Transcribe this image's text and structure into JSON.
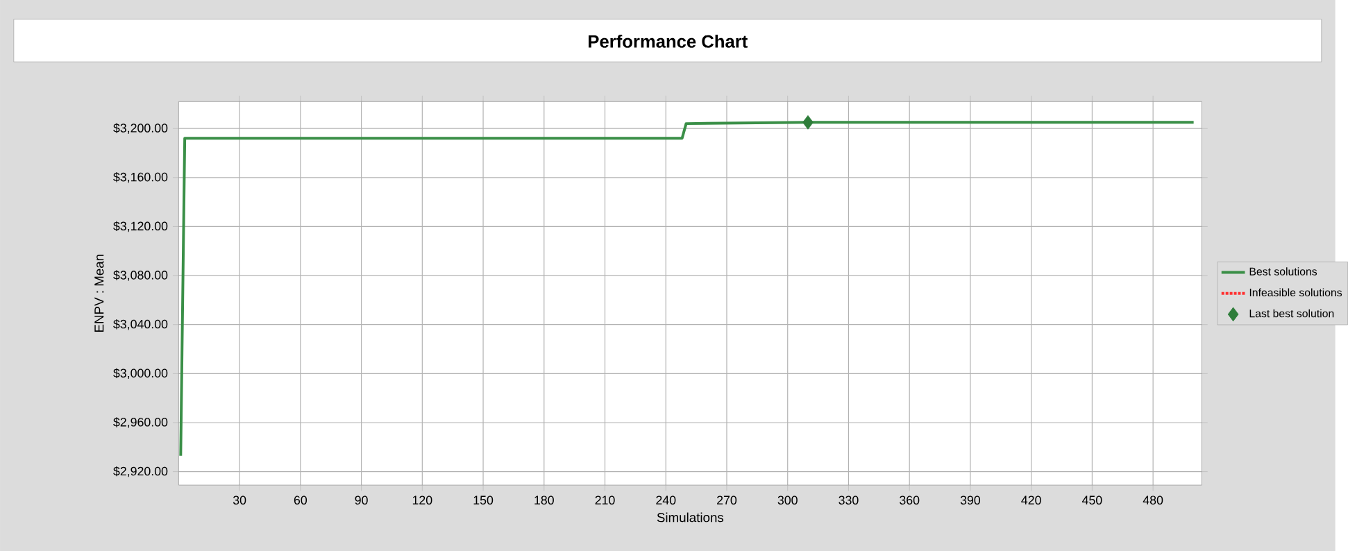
{
  "chart_data": {
    "type": "line",
    "title": "Performance Chart",
    "xlabel": "Simulations",
    "ylabel": "ENPV : Mean",
    "xlim": [
      0,
      504
    ],
    "ylim": [
      2909,
      3222
    ],
    "xticks": [
      30,
      60,
      90,
      120,
      150,
      180,
      210,
      240,
      270,
      300,
      330,
      360,
      390,
      420,
      450,
      480
    ],
    "yticks": [
      {
        "value": 2920,
        "label": "$2,920.00"
      },
      {
        "value": 2960,
        "label": "$2,960.00"
      },
      {
        "value": 3000,
        "label": "$3,000.00"
      },
      {
        "value": 3040,
        "label": "$3,040.00"
      },
      {
        "value": 3080,
        "label": "$3,080.00"
      },
      {
        "value": 3120,
        "label": "$3,120.00"
      },
      {
        "value": 3160,
        "label": "$3,160.00"
      },
      {
        "value": 3200,
        "label": "$3,200.00"
      }
    ],
    "grid": true,
    "legend": "right",
    "series": [
      {
        "name": "Best solutions",
        "color": "#3a8f47",
        "marker": "none",
        "line_style": "solid",
        "x": [
          1,
          3,
          248,
          250,
          310,
          500
        ],
        "values": [
          2933,
          3192,
          3192,
          3204,
          3205,
          3205
        ]
      },
      {
        "name": "Infeasible solutions",
        "type": "line",
        "color": "#ff3030",
        "marker": "none",
        "line_style": "dotted"
      },
      {
        "name": "Last best solution",
        "type": "scatter",
        "color": "#2e7d3a",
        "marker": "diamond",
        "x": [
          310
        ],
        "values": [
          3205
        ]
      }
    ]
  }
}
